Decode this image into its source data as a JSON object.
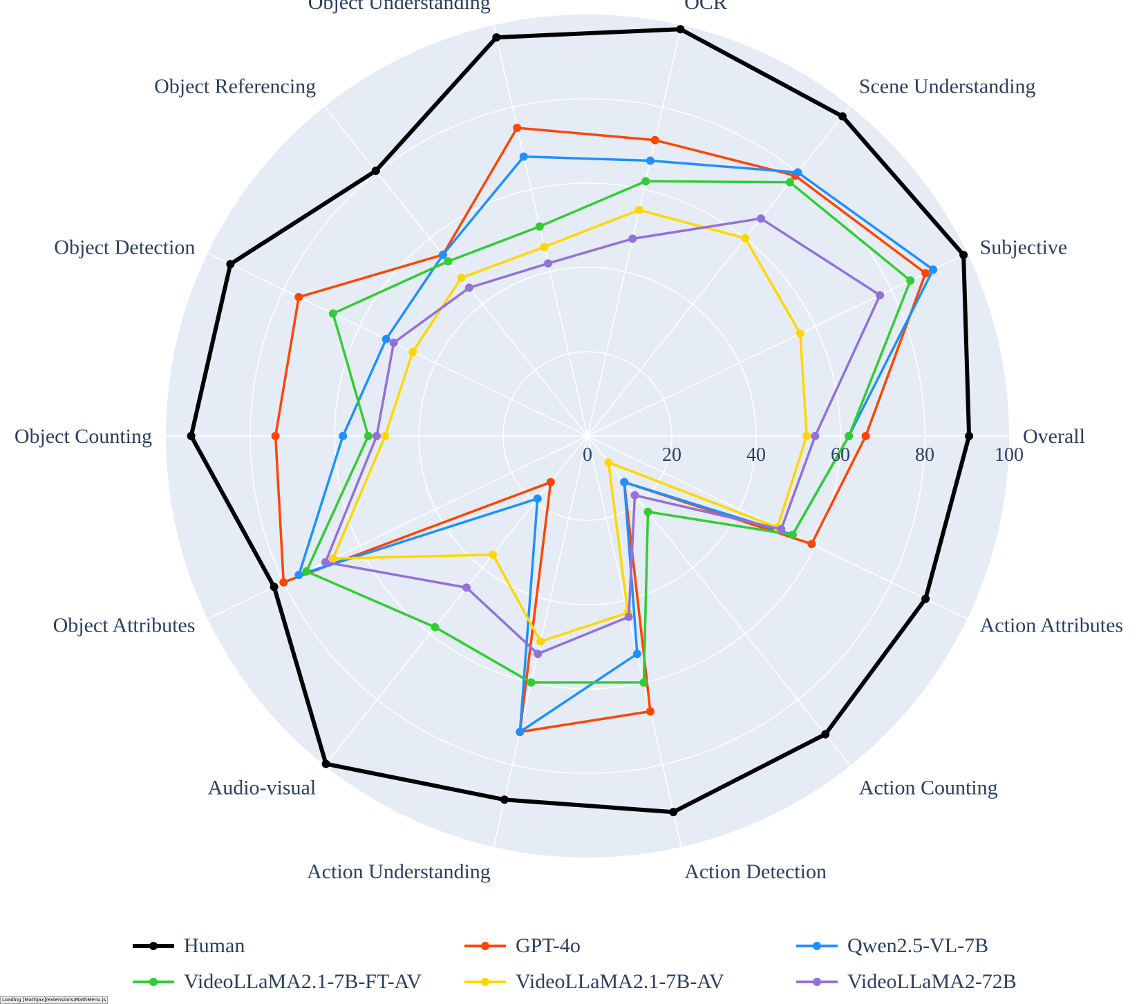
{
  "chart_data": {
    "type": "radar",
    "title": "",
    "categories": [
      "Overall",
      "Subjective",
      "Scene Understanding",
      "OCR",
      "Object Understanding",
      "Object Referencing",
      "Object Detection",
      "Object Counting",
      "Object Attributes",
      "Audio-visual",
      "Action Understanding",
      "Action Detection",
      "Action Counting",
      "Action Attributes"
    ],
    "radial_ticks": [
      "0",
      "20",
      "40",
      "60",
      "80",
      "100"
    ],
    "range": [
      0,
      100
    ],
    "grid": true,
    "legend_position": "bottom",
    "background": "#e5ecf6",
    "series": [
      {
        "name": "Human",
        "color": "#000000",
        "values": [
          90.5,
          99,
          97,
          99,
          97,
          80.5,
          94,
          94,
          82.5,
          99.5,
          88.5,
          91.5,
          90.5,
          89
        ]
      },
      {
        "name": "GPT-4o",
        "color": "#ff4500",
        "values": [
          66,
          89,
          79,
          72,
          75,
          55,
          76,
          74,
          80,
          14,
          72,
          67,
          14,
          59
        ]
      },
      {
        "name": "Qwen2.5-VL-7B",
        "color": "#1e90ff",
        "values": [
          62,
          91,
          80,
          67,
          68,
          55,
          53,
          58,
          76,
          19,
          72,
          53,
          14,
          54
        ]
      },
      {
        "name": "VideoLLaMA2.1-7B-FT-AV",
        "color": "#32cd32",
        "values": [
          62,
          85,
          77,
          62,
          51,
          53,
          67,
          52,
          74,
          58,
          60,
          60,
          23,
          54
        ]
      },
      {
        "name": "VideoLLaMA2.1-7B-AV",
        "color": "#ffd700",
        "values": [
          52,
          56,
          60,
          55,
          46,
          48,
          46,
          48,
          67,
          36,
          50,
          43,
          8,
          50
        ]
      },
      {
        "name": "VideoLLaMA2-72B",
        "color": "#9370db",
        "values": [
          54,
          77,
          66,
          48,
          42,
          45,
          51,
          50,
          69,
          46,
          53,
          44,
          18,
          51
        ]
      }
    ]
  },
  "status_text": "Loading [MathJax]/extensions/MathMenu.js"
}
